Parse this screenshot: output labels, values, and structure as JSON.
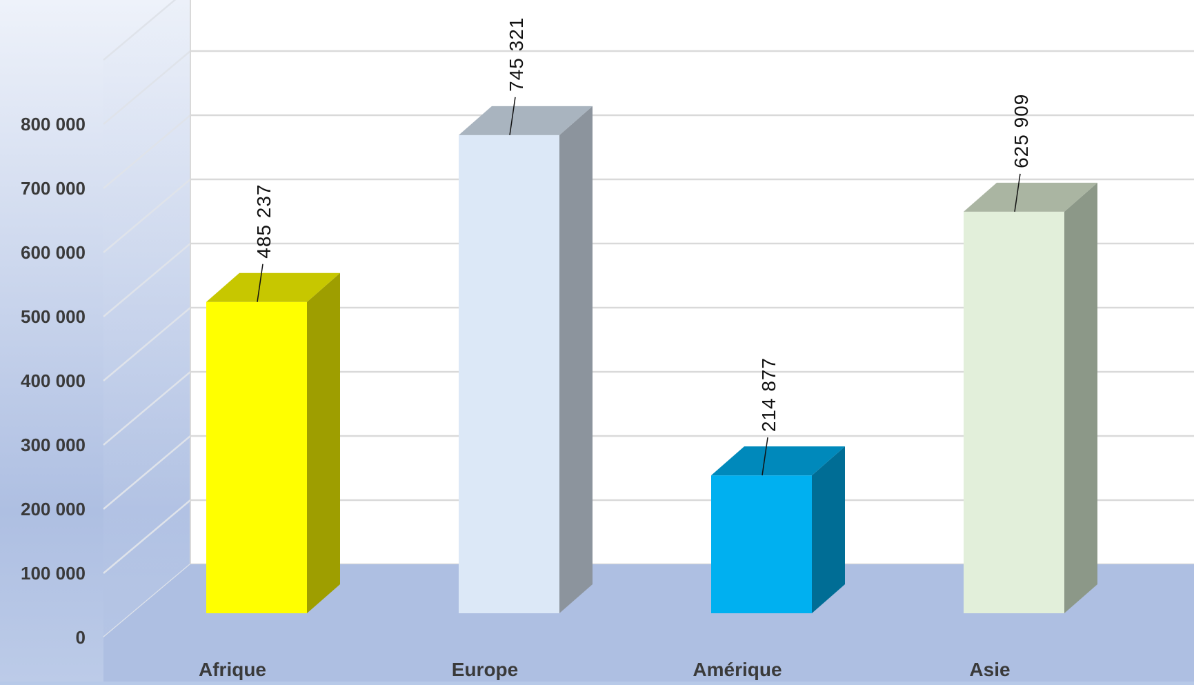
{
  "chart_data": {
    "type": "bar",
    "style": "3d-column",
    "categories": [
      "Afrique",
      "Europe",
      "Amérique",
      "Asie"
    ],
    "values": [
      485237,
      745321,
      214877,
      625909
    ],
    "data_labels": [
      "485 237",
      "745 321",
      "214 877",
      "625 909"
    ],
    "colors": [
      "#ffff00",
      "#dce8f7",
      "#00b0f0",
      "#e2efda"
    ],
    "ylim": [
      0,
      800000
    ],
    "yticks": [
      0,
      100000,
      200000,
      300000,
      400000,
      500000,
      600000,
      700000,
      800000
    ],
    "ytick_labels": [
      "0",
      "100 000",
      "200 000",
      "300 000",
      "400 000",
      "500 000",
      "600 000",
      "700 000",
      "800 000"
    ],
    "grid": true,
    "legend": "none"
  }
}
